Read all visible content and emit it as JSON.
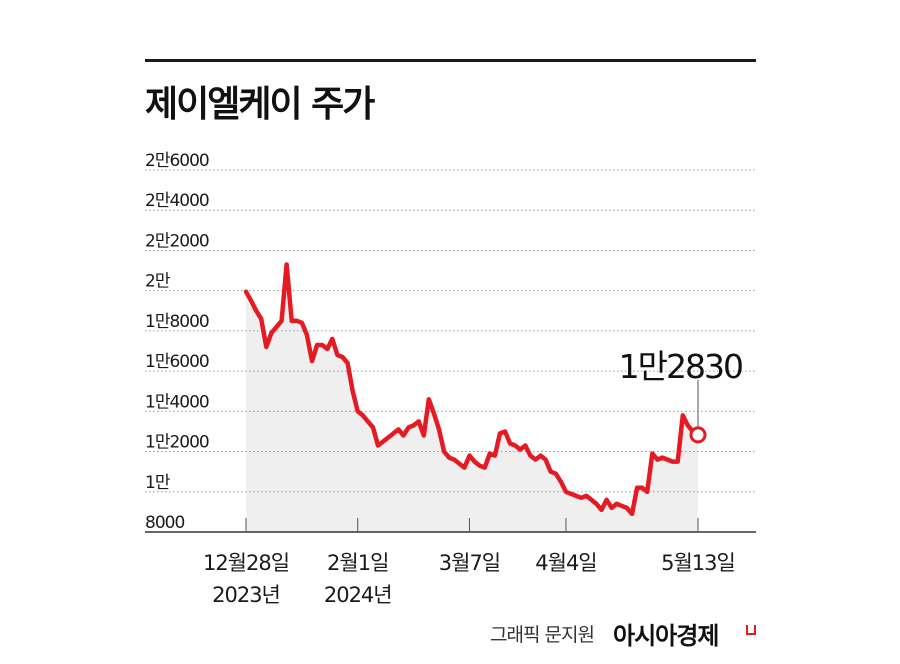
{
  "header": {
    "title": "제이엘케이 주가"
  },
  "chart_data": {
    "type": "area",
    "title": "제이엘케이 주가",
    "xlabel": "",
    "ylabel": "",
    "ylim": [
      8000,
      26000
    ],
    "yticks": [
      {
        "value": 26000,
        "label": "2만6000"
      },
      {
        "value": 24000,
        "label": "2만4000"
      },
      {
        "value": 22000,
        "label": "2만2000"
      },
      {
        "value": 20000,
        "label": "2만"
      },
      {
        "value": 18000,
        "label": "1만8000"
      },
      {
        "value": 16000,
        "label": "1만6000"
      },
      {
        "value": 14000,
        "label": "1만4000"
      },
      {
        "value": 12000,
        "label": "1만2000"
      },
      {
        "value": 10000,
        "label": "1만"
      },
      {
        "value": 8000,
        "label": "8000"
      }
    ],
    "xticks": [
      {
        "index": 0,
        "line1": "12월28일",
        "line2": "2023년"
      },
      {
        "index": 22,
        "line1": "2월1일",
        "line2": "2024년"
      },
      {
        "index": 44,
        "line1": "3월7일",
        "line2": ""
      },
      {
        "index": 63,
        "line1": "4월4일",
        "line2": ""
      },
      {
        "index": 89,
        "line1": "5월13일",
        "line2": ""
      }
    ],
    "grid": true,
    "series": [
      {
        "color": "#e41b23",
        "fill": "#efefef",
        "values": [
          19950,
          19500,
          19000,
          18600,
          17200,
          17900,
          18200,
          18500,
          21300,
          18500,
          18500,
          18400,
          17800,
          16500,
          17300,
          17300,
          17100,
          17600,
          16800,
          16700,
          16400,
          15000,
          14000,
          13800,
          13500,
          13200,
          12300,
          12500,
          12700,
          12900,
          13100,
          12800,
          13200,
          13300,
          13500,
          12800,
          14600,
          13900,
          13100,
          12000,
          11700,
          11600,
          11400,
          11200,
          11800,
          11500,
          11300,
          11200,
          11900,
          11800,
          12900,
          13000,
          12400,
          12300,
          12100,
          12300,
          11800,
          11600,
          11800,
          11600,
          11000,
          10900,
          10500,
          10000,
          9900,
          9800,
          9700,
          9800,
          9600,
          9400,
          9100,
          9600,
          9200,
          9400,
          9300,
          9200,
          8900,
          10200,
          10200,
          10000,
          11900,
          11600,
          11700,
          11600,
          11500,
          11500,
          13800,
          13300,
          13000,
          12830
        ]
      }
    ],
    "annotation": {
      "index": 89,
      "value": 12830,
      "label": "1만2830"
    }
  },
  "footer": {
    "credit": "그래픽 문지원",
    "brand": "아시아경제"
  },
  "colors": {
    "line": "#e41b23",
    "area": "#efefef",
    "grid": "#9a9a9a",
    "text": "#1a1a1a"
  }
}
